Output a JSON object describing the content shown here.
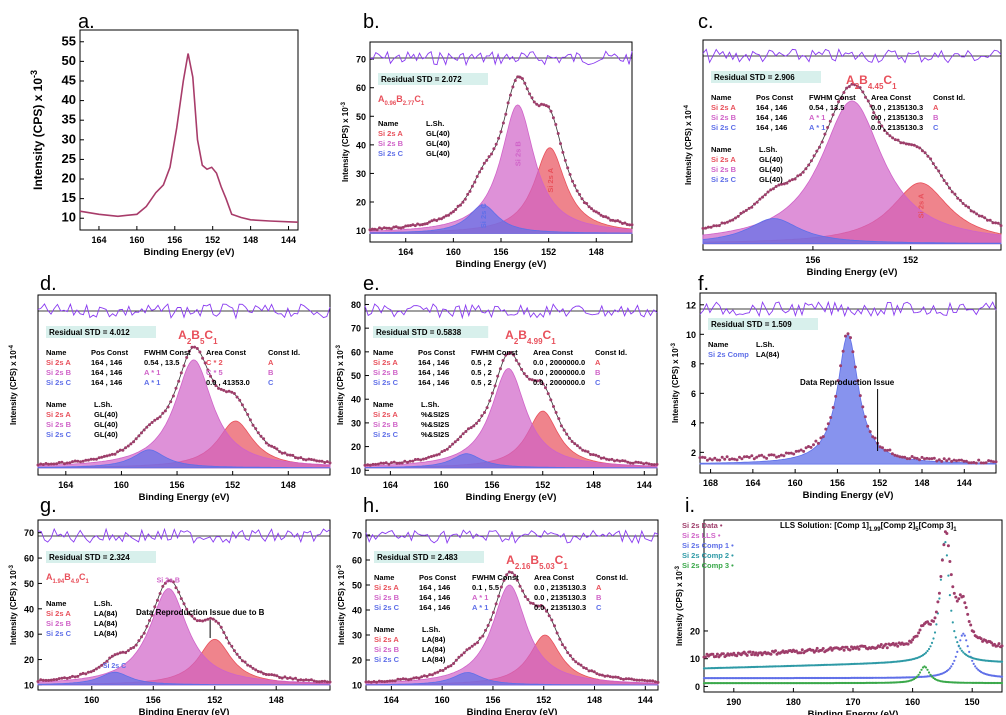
{
  "colors": {
    "red": "#e8505b",
    "pink": "#d063c8",
    "blue": "#5f6fe8",
    "envelope": "#9e3d6a",
    "resid": "#8a3cf0",
    "teal": "#2e9aa6",
    "green": "#3aa84a",
    "boxbg": "#d8f0ec",
    "rawline": "#a83c6a"
  },
  "chart_data": [
    {
      "panel": "a.",
      "type": "line",
      "xlabel": "Binding Energy (eV)",
      "ylabel": "Intensity (CPS) x 10",
      "ylabel_exp": "-3",
      "xticks": [
        "164",
        "160",
        "156",
        "152",
        "148",
        "144"
      ],
      "yticks": [
        "10",
        "15",
        "20",
        "25",
        "30",
        "35",
        "40",
        "45",
        "50",
        "55"
      ],
      "xlim": [
        166,
        143
      ],
      "ylim": [
        7,
        58
      ],
      "series": [
        {
          "x": [
            166,
            164,
            162,
            160,
            159,
            158,
            157.2,
            156.5,
            155.8,
            155.1,
            154.6,
            154.1,
            153.6,
            153.1,
            152.6,
            152.1,
            151.6,
            151.1,
            150.6,
            150,
            149,
            148,
            146,
            144,
            143
          ],
          "y": [
            11.8,
            11,
            10.5,
            11,
            13,
            16.5,
            18.5,
            23,
            33,
            45,
            52,
            46,
            30,
            23.5,
            22.5,
            23,
            21.5,
            18,
            15,
            11,
            10.2,
            9.6,
            9.3,
            9.1,
            9
          ]
        }
      ]
    },
    {
      "panel": "b.",
      "type": "line",
      "xlabel": "Binding Energy (eV)",
      "ylabel": "Intensity (CPS) x 10",
      "ylabel_exp": "-3",
      "xticks": [
        "164",
        "160",
        "156",
        "152",
        "148"
      ],
      "yticks": [
        "10",
        "20",
        "30",
        "40",
        "50",
        "60",
        "70"
      ],
      "xlim": [
        167,
        145
      ],
      "ylim": [
        6,
        76
      ],
      "residual_std": "Residual STD = 2.072",
      "formula": [
        [
          "A",
          ""
        ],
        [
          "0.96",
          "sub"
        ],
        [
          "B",
          ""
        ],
        [
          "2.77",
          "sub"
        ],
        [
          "C",
          ""
        ],
        [
          "1",
          "sub"
        ]
      ],
      "table_headers": [
        "Name",
        "L.Sh."
      ],
      "rows": [
        [
          "Si 2s A",
          "GL(40)"
        ],
        [
          "Si 2s B",
          "GL(40)"
        ],
        [
          "Si 2s C",
          "GL(40)"
        ]
      ],
      "peaks": [
        {
          "name": "Si 2s A",
          "center": 151.9,
          "height": 30,
          "width": 3.2
        },
        {
          "name": "Si 2s B",
          "center": 154.6,
          "height": 45,
          "width": 3.4
        },
        {
          "name": "Si 2s C",
          "center": 157.5,
          "height": 10,
          "width": 3.0
        }
      ],
      "peak_labels": [
        "Si 2s A",
        "Si 2s B",
        "Si 2s C"
      ],
      "baseline": 9
    },
    {
      "panel": "c.",
      "type": "line",
      "xlabel": "Binding Energy (eV)",
      "ylabel": "Intensity (CPS) x 10",
      "ylabel_exp": "-4",
      "xticks": [
        "156",
        "152"
      ],
      "yticks": [],
      "xlim": [
        160.5,
        148.3
      ],
      "ylim": [
        0,
        1
      ],
      "residual_std": "Residual STD = 2.906",
      "formula": [
        [
          "A",
          ""
        ],
        [
          "2",
          "sub"
        ],
        [
          "B",
          ""
        ],
        [
          "4.45",
          "sub"
        ],
        [
          "C",
          ""
        ],
        [
          "1",
          "sub"
        ]
      ],
      "table_headers": [
        "Name",
        "Pos Const",
        "FWHM Const",
        "Area Const",
        "Const Id."
      ],
      "rows": [
        [
          "Si 2s A",
          "164 , 146",
          "0.54 , 13.5",
          "0.0 , 2135130.3",
          "A"
        ],
        [
          "Si 2s B",
          "164 , 146",
          "A * 1",
          "0.0 , 2135130.3",
          "B"
        ],
        [
          "Si 2s C",
          "164 , 146",
          "A * 1",
          "0.0 , 2135130.3",
          "C"
        ]
      ],
      "table2_headers": [
        "Name",
        "L.Sh."
      ],
      "rows2": [
        [
          "Si 2s A",
          "GL(40)"
        ],
        [
          "Si 2s B",
          "GL(40)"
        ],
        [
          "Si 2s C",
          "GL(40)"
        ]
      ],
      "peaks": [
        {
          "name": "Si 2s A",
          "center": 151.6,
          "height": 0.29,
          "width": 2.9
        },
        {
          "name": "Si 2s B",
          "center": 154.4,
          "height": 0.68,
          "width": 3.1
        },
        {
          "name": "Si 2s C",
          "center": 157.6,
          "height": 0.12,
          "width": 2.6
        }
      ],
      "peak_labels": [
        "Si 2s A"
      ],
      "baseline": 0.03
    },
    {
      "panel": "d.",
      "type": "line",
      "xlabel": "Binding Energy (eV)",
      "ylabel": "Intensity (CPS) x 10",
      "ylabel_exp": "-4",
      "xticks": [
        "164",
        "160",
        "156",
        "152",
        "148"
      ],
      "yticks": [
        "10"
      ],
      "xlim": [
        166,
        145
      ],
      "ylim": [
        0,
        1
      ],
      "residual_std": "Residual STD = 4.012",
      "formula": [
        [
          "A",
          ""
        ],
        [
          "2",
          "sub"
        ],
        [
          "B",
          ""
        ],
        [
          "5",
          "sub"
        ],
        [
          "C",
          ""
        ],
        [
          "1",
          "sub"
        ]
      ],
      "table_headers": [
        "Name",
        "Pos Const",
        "FWHM Const",
        "Area Const",
        "Const Id."
      ],
      "rows": [
        [
          "Si 2s A",
          "164 , 146",
          "0.54 , 13.5",
          "C * 2",
          "A"
        ],
        [
          "Si 2s B",
          "164 , 146",
          "A * 1",
          "C * 5",
          "B"
        ],
        [
          "Si 2s C",
          "164 , 146",
          "A * 1",
          "0.0 , 41353.0",
          "C"
        ]
      ],
      "table2_headers": [
        "Name",
        "L.Sh."
      ],
      "rows2": [
        [
          "Si 2s A",
          "GL(40)"
        ],
        [
          "Si 2s B",
          "GL(40)"
        ],
        [
          "Si 2s C",
          "GL(40)"
        ]
      ],
      "peaks": [
        {
          "name": "Si 2s A",
          "center": 151.8,
          "height": 0.26,
          "width": 3.1
        },
        {
          "name": "Si 2s B",
          "center": 154.8,
          "height": 0.6,
          "width": 3.3
        },
        {
          "name": "Si 2s C",
          "center": 158,
          "height": 0.1,
          "width": 2.8
        }
      ],
      "peak_labels": [],
      "baseline": 0.04
    },
    {
      "panel": "e.",
      "type": "line",
      "xlabel": "Binding Energy (eV)",
      "ylabel": "Intensity (CPS) x 10",
      "ylabel_exp": "-3",
      "xticks": [
        "164",
        "160",
        "156",
        "152",
        "148",
        "144"
      ],
      "yticks": [
        "10",
        "20",
        "30",
        "40",
        "50",
        "60",
        "70",
        "80"
      ],
      "xlim": [
        166,
        143
      ],
      "ylim": [
        8,
        84
      ],
      "residual_std": "Residual STD = 0.5838",
      "formula": [
        [
          "A",
          ""
        ],
        [
          "2",
          "sub"
        ],
        [
          "B",
          ""
        ],
        [
          "4.99",
          "sub"
        ],
        [
          "C",
          ""
        ],
        [
          "1",
          "sub"
        ]
      ],
      "table_headers": [
        "Name",
        "Pos Const",
        "FWHM Const",
        "Area Const",
        "Const Id."
      ],
      "rows": [
        [
          "Si 2s A",
          "164 , 146",
          "0.5 , 2",
          "0.0 , 2000000.0",
          "A"
        ],
        [
          "Si 2s B",
          "164 , 146",
          "0.5 , 2",
          "0.0 , 2000000.0",
          "B"
        ],
        [
          "Si 2s C",
          "164 , 146",
          "0.5 , 2",
          "0.0 , 2000000.0",
          "C"
        ]
      ],
      "table2_headers": [
        "Name",
        "L.Sh."
      ],
      "rows2": [
        [
          "Si 2s A",
          "%&SI2S"
        ],
        [
          "Si 2s B",
          "%&SI2S"
        ],
        [
          "Si 2s C",
          "%&SI2S"
        ]
      ],
      "peaks": [
        {
          "name": "Si 2s A",
          "center": 152,
          "height": 24,
          "width": 3.0
        },
        {
          "name": "Si 2s B",
          "center": 154.7,
          "height": 42,
          "width": 3.3
        },
        {
          "name": "Si 2s C",
          "center": 158,
          "height": 6,
          "width": 2.8
        }
      ],
      "peak_labels": [],
      "baseline": 11
    },
    {
      "panel": "f.",
      "type": "line",
      "xlabel": "Binding Energy (eV)",
      "ylabel": "Intensity (CPS) x 10",
      "ylabel_exp": "-3",
      "xticks": [
        "168",
        "164",
        "160",
        "156",
        "152",
        "148",
        "144"
      ],
      "yticks": [
        "2",
        "4",
        "6",
        "8",
        "10",
        "12"
      ],
      "xlim": [
        169,
        141
      ],
      "ylim": [
        0.6,
        12.8
      ],
      "residual_std": "Residual STD = 1.509",
      "table_headers": [
        "Name",
        "L.Sh."
      ],
      "rows": [
        [
          "Si 2s Comp",
          "LA(84)"
        ]
      ],
      "annotation": "Data Reproduction Issue",
      "peaks": [
        {
          "name": "Si 2s Comp",
          "center": 155,
          "height": 8.8,
          "width": 2.4
        }
      ],
      "peak_labels": [],
      "baseline": 1.2
    },
    {
      "panel": "g.",
      "type": "line",
      "xlabel": "Binding Energy (eV)",
      "ylabel": "Intensity (CPS) x 10",
      "ylabel_exp": "-3",
      "xticks": [
        "160",
        "156",
        "152",
        "148"
      ],
      "yticks": [
        "10",
        "20",
        "30",
        "40",
        "50",
        "60",
        "70"
      ],
      "xlim": [
        163.5,
        144.5
      ],
      "ylim": [
        8,
        75
      ],
      "residual_std": "Residual STD = 2.324",
      "formula": [
        [
          "A",
          ""
        ],
        [
          "1.94",
          "sub"
        ],
        [
          "B",
          ""
        ],
        [
          "4.9",
          "sub"
        ],
        [
          "C",
          ""
        ],
        [
          "1",
          "sub"
        ]
      ],
      "table_headers": [
        "Name",
        "L.Sh."
      ],
      "rows": [
        [
          "Si 2s A",
          "LA(84)"
        ],
        [
          "Si 2s B",
          "LA(84)"
        ],
        [
          "Si 2s C",
          "LA(84)"
        ]
      ],
      "annotation": "Data Reproduction Issue due to B",
      "peaks": [
        {
          "name": "Si 2s A",
          "center": 152,
          "height": 18,
          "width": 2.6
        },
        {
          "name": "Si 2s B",
          "center": 155,
          "height": 38,
          "width": 3.0
        },
        {
          "name": "Si 2s C",
          "center": 158.5,
          "height": 5,
          "width": 2.4
        }
      ],
      "peak_labels": [
        "Si 2s B",
        "Si 2s C"
      ],
      "baseline": 10
    },
    {
      "panel": "h.",
      "type": "line",
      "xlabel": "Binding Energy (eV)",
      "ylabel": "Intensity (CPS) x 10",
      "ylabel_exp": "-3",
      "xticks": [
        "164",
        "160",
        "156",
        "152",
        "148",
        "144"
      ],
      "yticks": [
        "10",
        "20",
        "30",
        "40",
        "50",
        "60",
        "70"
      ],
      "xlim": [
        166,
        143
      ],
      "ylim": [
        8,
        76
      ],
      "residual_std": "Residual STD = 2.483",
      "formula": [
        [
          "A",
          ""
        ],
        [
          "2.16",
          "sub"
        ],
        [
          "B",
          ""
        ],
        [
          "5.03",
          "sub"
        ],
        [
          "C",
          ""
        ],
        [
          "1",
          "sub"
        ]
      ],
      "table_headers": [
        "Name",
        "Pos Const",
        "FWHM Const",
        "Area Const",
        "Const Id."
      ],
      "rows": [
        [
          "Si 2s A",
          "164 , 146",
          "0.1 , 5.5",
          "0.0 , 2135130.3",
          "A"
        ],
        [
          "Si 2s B",
          "164 , 146",
          "A * 1",
          "0.0 , 2135130.3",
          "B"
        ],
        [
          "Si 2s C",
          "164 , 146",
          "A * 1",
          "0.0 , 2135130.3",
          "C"
        ]
      ],
      "table2_headers": [
        "Name",
        "L.Sh."
      ],
      "rows2": [
        [
          "Si 2s A",
          "LA(84)"
        ],
        [
          "Si 2s B",
          "LA(84)"
        ],
        [
          "Si 2s C",
          "LA(84)"
        ]
      ],
      "peaks": [
        {
          "name": "Si 2s A",
          "center": 151.9,
          "height": 20,
          "width": 3.0
        },
        {
          "name": "Si 2s B",
          "center": 154.7,
          "height": 40,
          "width": 3.3
        },
        {
          "name": "Si 2s C",
          "center": 158,
          "height": 5,
          "width": 2.8
        }
      ],
      "peak_labels": [],
      "baseline": 10
    },
    {
      "panel": "i.",
      "type": "scatter",
      "xlabel": "Binding Energy (eV)",
      "ylabel": "Intensity (CPS) x 10",
      "ylabel_exp": "-3",
      "xticks": [
        "190",
        "180",
        "170",
        "160",
        "150"
      ],
      "yticks": [
        "0",
        "10",
        "20"
      ],
      "xlim": [
        195,
        145
      ],
      "ylim": [
        -2,
        60
      ],
      "title_text": "LLS Solution: [Comp 1]",
      "title_parts": [
        [
          "LLS Solution: [Comp 1]",
          ""
        ],
        [
          "1.99",
          "sub"
        ],
        [
          "[Comp 2]",
          ""
        ],
        [
          "5",
          "sub"
        ],
        [
          "[Comp 3]",
          ""
        ],
        [
          "1",
          "sub"
        ]
      ],
      "legend": [
        "Si 2s Data",
        "Si 2s LLS",
        "Si 2s Comp 1",
        "Si 2s Comp 2",
        "Si 2s Comp 3"
      ]
    }
  ]
}
